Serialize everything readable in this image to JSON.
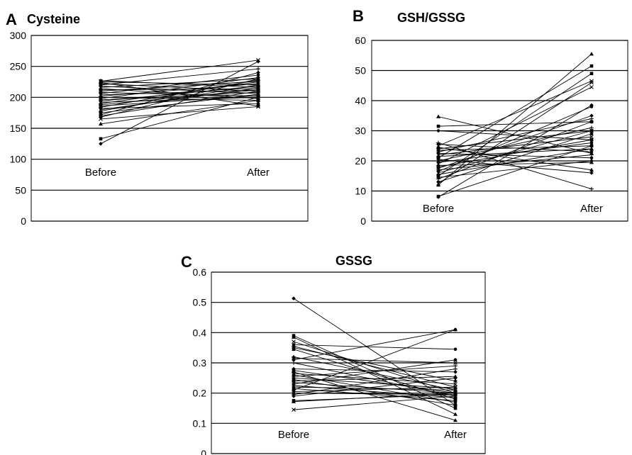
{
  "chart_data": [
    {
      "type": "line",
      "panel": "A",
      "title": "Cysteine",
      "categories": [
        "Before",
        "After"
      ],
      "ylim": [
        0,
        300
      ],
      "yticks": [
        "0",
        "50",
        "100",
        "150",
        "200",
        "250",
        "300"
      ],
      "grid": true,
      "series": [
        {
          "values": [
            125,
            258
          ]
        },
        {
          "values": [
            133,
            200
          ]
        },
        {
          "values": [
            157,
            195
          ]
        },
        {
          "values": [
            165,
            185
          ]
        },
        {
          "values": [
            168,
            230
          ]
        },
        {
          "values": [
            170,
            210
          ]
        },
        {
          "values": [
            172,
            240
          ]
        },
        {
          "values": [
            175,
            205
          ]
        },
        {
          "values": [
            178,
            220
          ]
        },
        {
          "values": [
            180,
            215
          ]
        },
        {
          "values": [
            182,
            190
          ]
        },
        {
          "values": [
            184,
            228
          ]
        },
        {
          "values": [
            186,
            203
          ]
        },
        {
          "values": [
            188,
            212
          ]
        },
        {
          "values": [
            190,
            225
          ]
        },
        {
          "values": [
            192,
            200
          ]
        },
        {
          "values": [
            194,
            218
          ]
        },
        {
          "values": [
            196,
            208
          ]
        },
        {
          "values": [
            198,
            232
          ]
        },
        {
          "values": [
            200,
            195
          ]
        },
        {
          "values": [
            202,
            222
          ]
        },
        {
          "values": [
            204,
            212
          ]
        },
        {
          "values": [
            206,
            236
          ]
        },
        {
          "values": [
            208,
            202
          ]
        },
        {
          "values": [
            210,
            226
          ]
        },
        {
          "values": [
            212,
            214
          ]
        },
        {
          "values": [
            214,
            198
          ]
        },
        {
          "values": [
            216,
            230
          ]
        },
        {
          "values": [
            218,
            206
          ]
        },
        {
          "values": [
            220,
            246
          ]
        },
        {
          "values": [
            222,
            210
          ]
        },
        {
          "values": [
            224,
            186
          ]
        },
        {
          "values": [
            225,
            220
          ]
        },
        {
          "values": [
            226,
            260
          ]
        },
        {
          "values": [
            227,
            216
          ]
        }
      ]
    },
    {
      "type": "line",
      "panel": "B",
      "title": "GSH/GSSG",
      "categories": [
        "Before",
        "After"
      ],
      "ylim": [
        0,
        60
      ],
      "yticks": [
        "0",
        "10",
        "20",
        "30",
        "40",
        "50",
        "60"
      ],
      "grid": true,
      "series": [
        {
          "values": [
            8,
            38.5
          ]
        },
        {
          "values": [
            8.2,
            25
          ]
        },
        {
          "values": [
            12,
            55.5
          ]
        },
        {
          "values": [
            12.5,
            46
          ]
        },
        {
          "values": [
            13,
            29
          ]
        },
        {
          "values": [
            14,
            33
          ]
        },
        {
          "values": [
            14.5,
            20
          ]
        },
        {
          "values": [
            15,
            49
          ]
        },
        {
          "values": [
            15.5,
            24
          ]
        },
        {
          "values": [
            16,
            30
          ]
        },
        {
          "values": [
            16.5,
            38
          ]
        },
        {
          "values": [
            17,
            22
          ]
        },
        {
          "values": [
            17.5,
            35
          ]
        },
        {
          "values": [
            18,
            27
          ]
        },
        {
          "values": [
            18.5,
            19.5
          ]
        },
        {
          "values": [
            19,
            44.5
          ]
        },
        {
          "values": [
            19.5,
            26
          ]
        },
        {
          "values": [
            20,
            31
          ]
        },
        {
          "values": [
            20.5,
            16
          ]
        },
        {
          "values": [
            21,
            51.5
          ]
        },
        {
          "values": [
            21.5,
            24
          ]
        },
        {
          "values": [
            22,
            28
          ]
        },
        {
          "values": [
            22.5,
            21
          ]
        },
        {
          "values": [
            23,
            34
          ]
        },
        {
          "values": [
            23.5,
            25
          ]
        },
        {
          "values": [
            24,
            30
          ]
        },
        {
          "values": [
            24.5,
            17
          ]
        },
        {
          "values": [
            25,
            46.5
          ]
        },
        {
          "values": [
            25.5,
            23
          ]
        },
        {
          "values": [
            26,
            10.7
          ]
        },
        {
          "values": [
            30,
            27
          ]
        },
        {
          "values": [
            31.5,
            33
          ]
        },
        {
          "values": [
            34.7,
            22.5
          ]
        }
      ]
    },
    {
      "type": "line",
      "panel": "C",
      "title": "GSSG",
      "categories": [
        "Before",
        "After"
      ],
      "ylim": [
        0,
        0.6
      ],
      "yticks": [
        "0",
        "0.1",
        "0.2",
        "0.3",
        "0.4",
        "0.5",
        "0.6"
      ],
      "grid": true,
      "series": [
        {
          "values": [
            0.513,
            0.16
          ]
        },
        {
          "values": [
            0.39,
            0.15
          ]
        },
        {
          "values": [
            0.385,
            0.13
          ]
        },
        {
          "values": [
            0.37,
            0.2
          ]
        },
        {
          "values": [
            0.36,
            0.345
          ]
        },
        {
          "values": [
            0.355,
            0.22
          ]
        },
        {
          "values": [
            0.35,
            0.24
          ]
        },
        {
          "values": [
            0.345,
            0.18
          ]
        },
        {
          "values": [
            0.32,
            0.21
          ]
        },
        {
          "values": [
            0.315,
            0.3
          ]
        },
        {
          "values": [
            0.31,
            0.41
          ]
        },
        {
          "values": [
            0.3,
            0.19
          ]
        },
        {
          "values": [
            0.28,
            0.27
          ]
        },
        {
          "values": [
            0.275,
            0.2
          ]
        },
        {
          "values": [
            0.27,
            0.11
          ]
        },
        {
          "values": [
            0.265,
            0.23
          ]
        },
        {
          "values": [
            0.26,
            0.17
          ]
        },
        {
          "values": [
            0.255,
            0.29
          ]
        },
        {
          "values": [
            0.25,
            0.215
          ]
        },
        {
          "values": [
            0.245,
            0.16
          ]
        },
        {
          "values": [
            0.24,
            0.255
          ]
        },
        {
          "values": [
            0.235,
            0.2
          ]
        },
        {
          "values": [
            0.23,
            0.31
          ]
        },
        {
          "values": [
            0.225,
            0.185
          ]
        },
        {
          "values": [
            0.22,
            0.21
          ]
        },
        {
          "values": [
            0.215,
            0.175
          ]
        },
        {
          "values": [
            0.21,
            0.41
          ]
        },
        {
          "values": [
            0.205,
            0.22
          ]
        },
        {
          "values": [
            0.2,
            0.195
          ]
        },
        {
          "values": [
            0.195,
            0.28
          ]
        },
        {
          "values": [
            0.19,
            0.25
          ]
        },
        {
          "values": [
            0.175,
            0.195
          ]
        },
        {
          "values": [
            0.172,
            0.2
          ]
        },
        {
          "values": [
            0.145,
            0.19
          ]
        }
      ]
    }
  ]
}
